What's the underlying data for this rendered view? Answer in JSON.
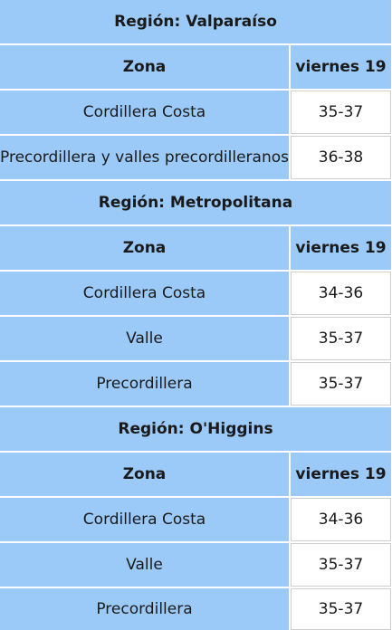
{
  "colors": {
    "header_blue": "#9ccaf8",
    "value_bg": "#ffffff",
    "text": "#1a1a1a"
  },
  "regions": [
    {
      "title": "Región: Valparaíso",
      "zone_header": "Zona",
      "day_header": "viernes 19",
      "rows": [
        {
          "zone": "Cordillera Costa",
          "value": "35-37"
        },
        {
          "zone": "Precordillera y valles precordilleranos",
          "value": "36-38"
        }
      ]
    },
    {
      "title": "Región: Metropolitana",
      "zone_header": "Zona",
      "day_header": "viernes 19",
      "rows": [
        {
          "zone": "Cordillera Costa",
          "value": "34-36"
        },
        {
          "zone": "Valle",
          "value": "35-37"
        },
        {
          "zone": "Precordillera",
          "value": "35-37"
        }
      ]
    },
    {
      "title": "Región: O'Higgins",
      "zone_header": "Zona",
      "day_header": "viernes 19",
      "rows": [
        {
          "zone": "Cordillera Costa",
          "value": "34-36"
        },
        {
          "zone": "Valle",
          "value": "35-37"
        },
        {
          "zone": "Precordillera",
          "value": "35-37"
        }
      ]
    }
  ]
}
